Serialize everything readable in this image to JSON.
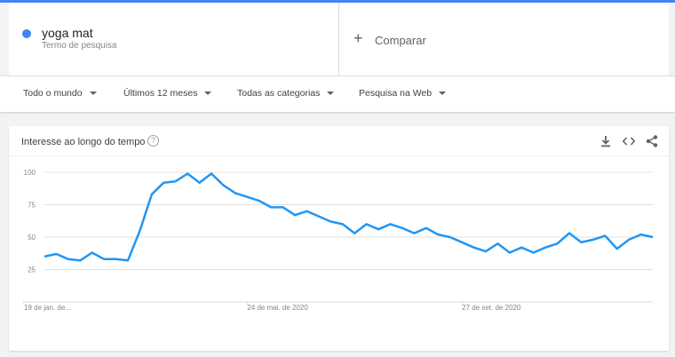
{
  "search": {
    "term": "yoga mat",
    "term_subtitle": "Termo de pesquisa",
    "term_color": "#4285f4",
    "compare_label": "Comparar"
  },
  "filters": [
    {
      "label": "Todo o mundo"
    },
    {
      "label": "Últimos 12 meses"
    },
    {
      "label": "Todas as categorias"
    },
    {
      "label": "Pesquisa na Web"
    }
  ],
  "card": {
    "title": "Interesse ao longo do tempo",
    "icons": [
      "help-icon",
      "download-icon",
      "embed-icon",
      "share-icon"
    ]
  },
  "chart_data": {
    "type": "line",
    "title": "",
    "xlabel": "",
    "ylabel": "",
    "ylim": [
      0,
      100
    ],
    "y_ticks": [
      100,
      75,
      50,
      25
    ],
    "x_tick_labels": [
      "19 de jan. de...",
      "24 de mai. de 2020",
      "27 de set. de 2020"
    ],
    "x_tick_indices": [
      0,
      17,
      35
    ],
    "grid": true,
    "series": [
      {
        "color": "#2196f3",
        "values": [
          35,
          37,
          33,
          32,
          38,
          33,
          33,
          32,
          55,
          83,
          92,
          93,
          99,
          92,
          99,
          90,
          84,
          81,
          78,
          73,
          73,
          67,
          70,
          66,
          62,
          60,
          53,
          60,
          56,
          60,
          57,
          53,
          57,
          52,
          50,
          46,
          42,
          39,
          45,
          38,
          42,
          38,
          42,
          45,
          53,
          46,
          48,
          51,
          41,
          48,
          52,
          50
        ]
      }
    ]
  }
}
